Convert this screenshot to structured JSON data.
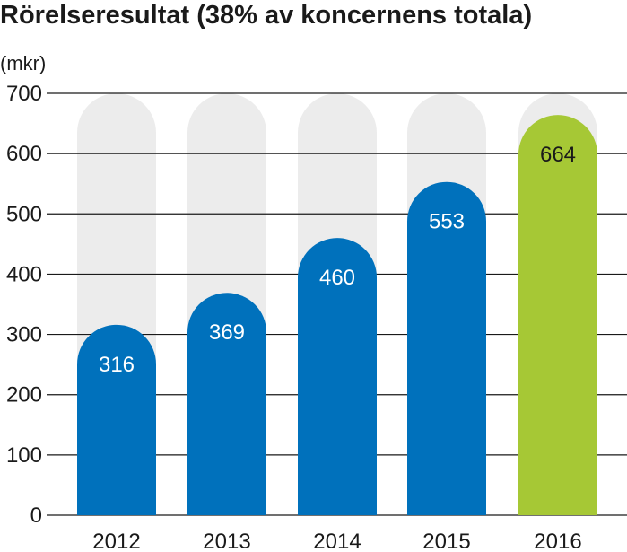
{
  "chart_data": {
    "type": "bar",
    "title": "Rörelseresultat (38% av koncernens totala)",
    "ylabel": "(mkr)",
    "categories": [
      "2012",
      "2013",
      "2014",
      "2015",
      "2016"
    ],
    "values": [
      316,
      369,
      460,
      553,
      664
    ],
    "ylim": [
      0,
      700
    ],
    "yticks": [
      0,
      100,
      200,
      300,
      400,
      500,
      600,
      700
    ],
    "grid": true,
    "colors": {
      "bar": "#0071bc",
      "highlight": "#a6c835",
      "track": "#ececec",
      "grid": "#1a1a1a",
      "label": "#ffffff",
      "label_highlight": "#1a1a1a"
    },
    "highlight_index": 4
  }
}
